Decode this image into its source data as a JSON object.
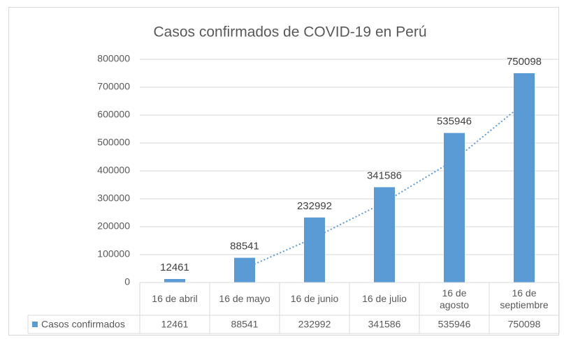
{
  "chart_data": {
    "type": "bar",
    "title": "Casos confirmados de COVID-19 en Perú",
    "categories": [
      "16 de abril",
      "16 de mayo",
      "16 de junio",
      "16 de julio",
      "16 de agosto",
      "16 de septiembre"
    ],
    "series": [
      {
        "name": "Casos confirmados",
        "color": "#5b9bd5",
        "values": [
          12461,
          88541,
          232992,
          341586,
          535946,
          750098
        ]
      }
    ],
    "ylim": [
      0,
      800000
    ],
    "yticks": [
      0,
      100000,
      200000,
      300000,
      400000,
      500000,
      600000,
      700000,
      800000
    ],
    "grid": true,
    "data_labels": true,
    "data_table": true,
    "trendline": {
      "kind": "moving_average",
      "period": 2
    }
  }
}
